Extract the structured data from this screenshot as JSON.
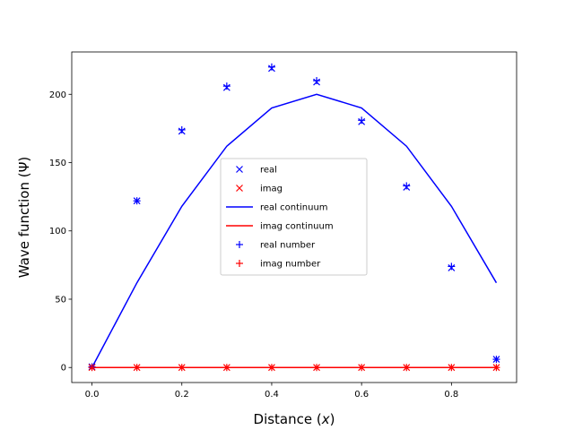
{
  "chart_data": {
    "type": "line",
    "title": "",
    "xlabel": "Distance ($x$)",
    "xlabel_parts": [
      "Distance (",
      "x",
      ")"
    ],
    "ylabel": "Wave function (Ψ)",
    "xlim": [
      -0.045,
      0.945
    ],
    "ylim": [
      -11,
      231
    ],
    "xticks": [
      0.0,
      0.2,
      0.4,
      0.6,
      0.8
    ],
    "xtick_labels": [
      "0.0",
      "0.2",
      "0.4",
      "0.6",
      "0.8"
    ],
    "yticks": [
      0,
      50,
      100,
      150,
      200
    ],
    "ytick_labels": [
      "0",
      "50",
      "100",
      "150",
      "200"
    ],
    "grid": false,
    "legend_position": "center",
    "x": [
      0.0,
      0.1,
      0.2,
      0.3,
      0.4,
      0.5,
      0.6,
      0.7,
      0.8,
      0.9
    ],
    "series": [
      {
        "name": "real",
        "kind": "marker",
        "marker": "x",
        "color": "#0000ff",
        "values": [
          0.5,
          122,
          173,
          205,
          219,
          209,
          180,
          132,
          73,
          6
        ]
      },
      {
        "name": "imag",
        "kind": "marker",
        "marker": "x",
        "color": "#ff0000",
        "values": [
          0,
          0,
          0,
          0,
          0,
          0,
          0,
          0,
          0,
          0
        ]
      },
      {
        "name": "real continuum",
        "kind": "line",
        "color": "#0000ff",
        "values": [
          0,
          62,
          118,
          162,
          190,
          200,
          190,
          162,
          118,
          62
        ]
      },
      {
        "name": "imag continuum",
        "kind": "line",
        "color": "#ff0000",
        "values": [
          0,
          0,
          0,
          0,
          0,
          0,
          0,
          0,
          0,
          0
        ]
      },
      {
        "name": "real number",
        "kind": "marker",
        "marker": "+",
        "color": "#0000ff",
        "values": [
          0.5,
          122,
          174,
          206,
          220,
          210,
          181,
          133,
          74,
          6
        ]
      },
      {
        "name": "imag number",
        "kind": "marker",
        "marker": "+",
        "color": "#ff0000",
        "values": [
          0,
          0,
          0,
          0,
          0,
          0,
          0,
          0,
          0,
          0
        ]
      }
    ]
  }
}
